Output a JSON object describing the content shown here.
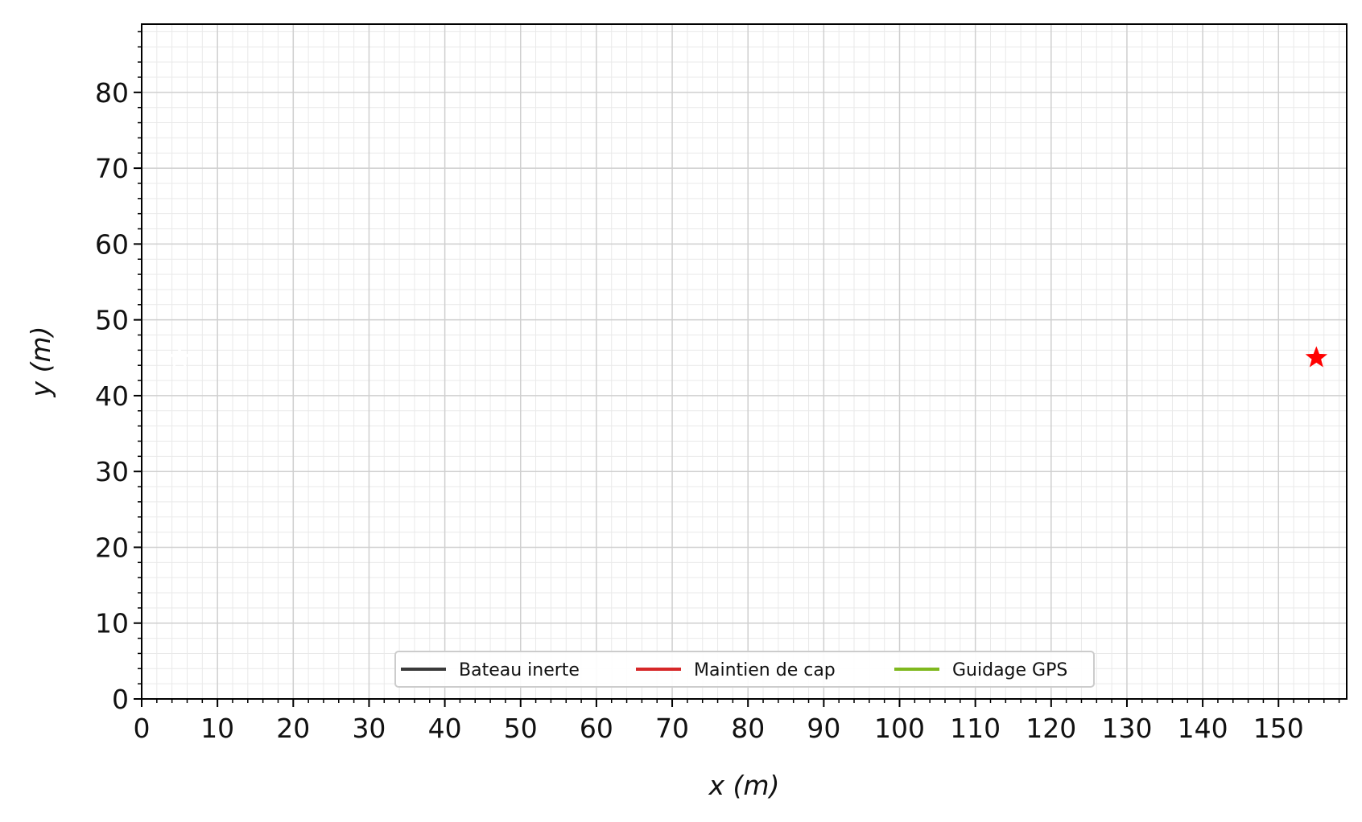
{
  "chart_data": {
    "type": "line",
    "xlabel": "x (m)",
    "ylabel": "y (m)",
    "xlim": [
      0,
      159
    ],
    "ylim": [
      0,
      89
    ],
    "x_major_ticks": [
      0,
      10,
      20,
      30,
      40,
      50,
      60,
      70,
      80,
      90,
      100,
      110,
      120,
      130,
      140,
      150
    ],
    "y_major_ticks": [
      0,
      10,
      20,
      30,
      40,
      50,
      60,
      70,
      80
    ],
    "x_tick_labels": [
      "0",
      "10",
      "20",
      "30",
      "40",
      "50",
      "60",
      "70",
      "80",
      "90",
      "100",
      "110",
      "120",
      "130",
      "140",
      "150"
    ],
    "y_tick_labels": [
      "0",
      "10",
      "20",
      "30",
      "40",
      "50",
      "60",
      "70",
      "80"
    ],
    "minor_tick_step": 2,
    "grid": true,
    "legend_placement": "lower center",
    "series": [
      {
        "name": "Bateau inerte",
        "color": "#3a3a3a",
        "points": []
      },
      {
        "name": "Maintien de cap",
        "color": "#d62728",
        "points": []
      },
      {
        "name": "Guidage GPS",
        "color": "#7fb81e",
        "points": []
      }
    ],
    "markers": [
      {
        "role": "start",
        "marker": "star",
        "color": "#ffffff",
        "x": 5,
        "y": 45
      },
      {
        "role": "target",
        "marker": "star",
        "color": "#ff0000",
        "x": 155,
        "y": 45
      }
    ]
  }
}
